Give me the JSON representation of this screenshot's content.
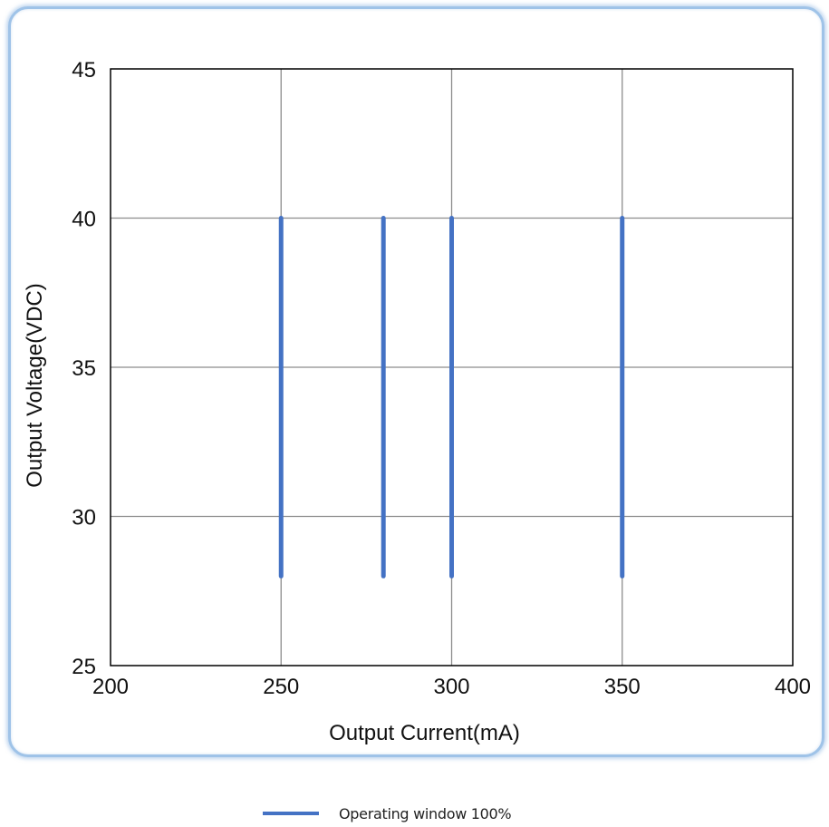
{
  "chart_data": {
    "type": "line",
    "xlabel": "Output Current(mA)",
    "ylabel": "Output Voltage(VDC)",
    "xlim": [
      200,
      400
    ],
    "ylim": [
      25,
      45
    ],
    "x_ticks": [
      200,
      250,
      300,
      350,
      400
    ],
    "y_ticks": [
      25,
      30,
      35,
      40,
      45
    ],
    "grid": true,
    "legend_position": "bottom",
    "series": [
      {
        "name": "Operating window 100%",
        "color": "#4472c4",
        "segments": [
          {
            "x": [
              250,
              250
            ],
            "y": [
              28,
              40
            ]
          },
          {
            "x": [
              280,
              280
            ],
            "y": [
              28,
              40
            ]
          },
          {
            "x": [
              300,
              300
            ],
            "y": [
              28,
              40
            ]
          },
          {
            "x": [
              350,
              350
            ],
            "y": [
              28,
              40
            ]
          }
        ]
      }
    ]
  }
}
